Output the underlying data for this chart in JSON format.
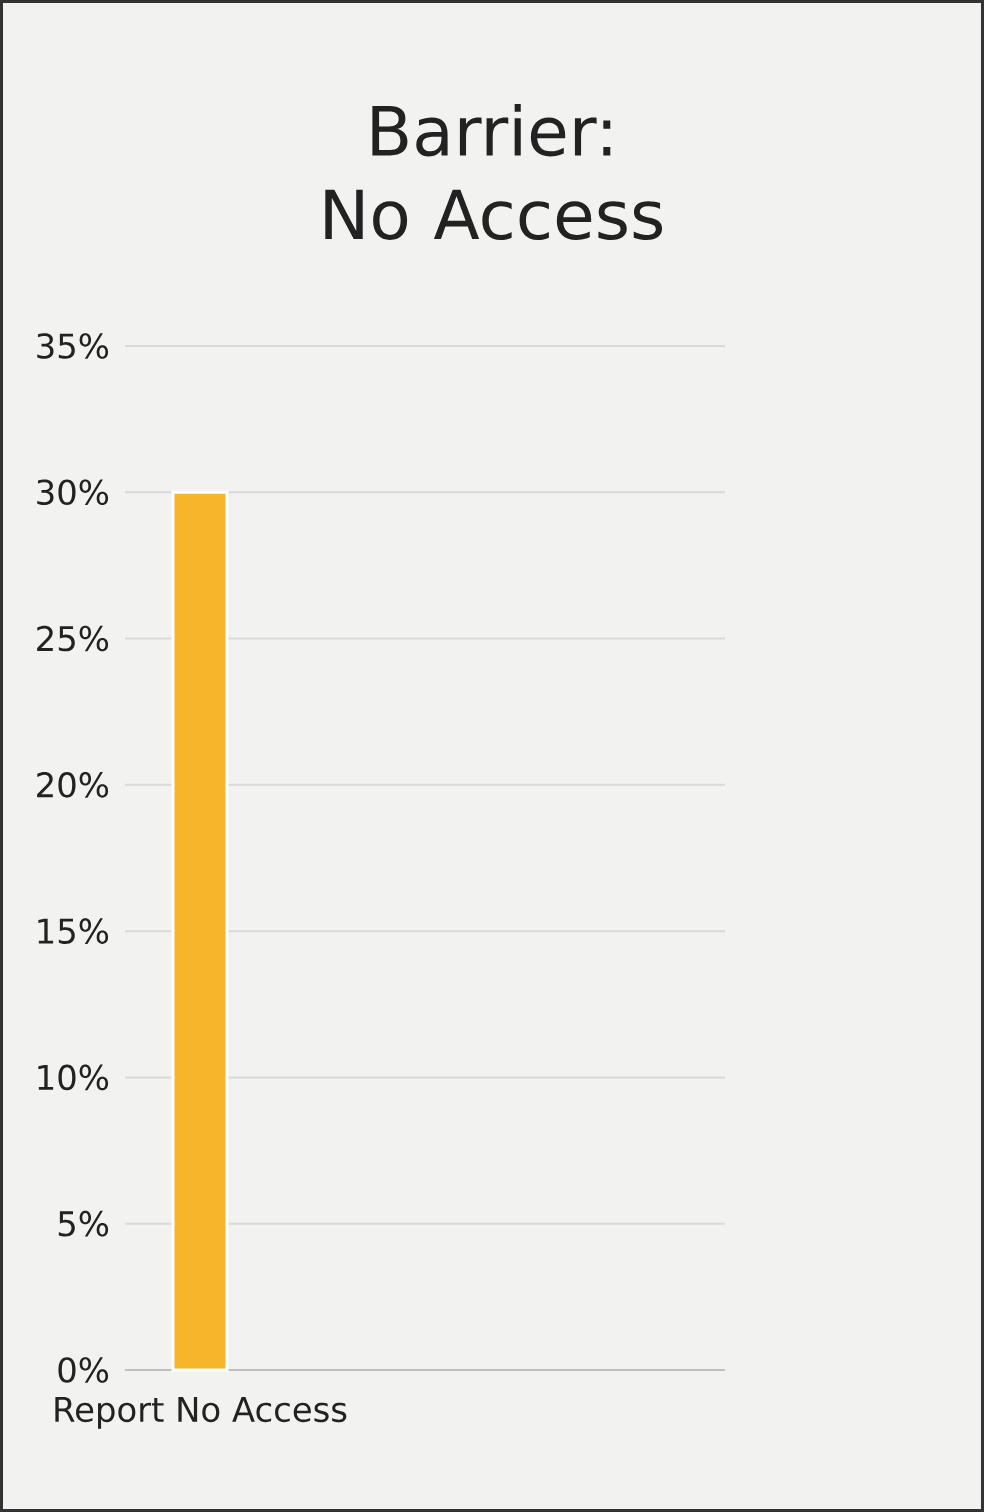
{
  "chart_data": {
    "type": "bar",
    "title": "Barrier: No Access",
    "categories": [
      "Report No Access",
      null,
      null,
      null
    ],
    "values": [
      30,
      null,
      null,
      null
    ],
    "color": "#f7b52b",
    "ylim": [
      0,
      35
    ],
    "yticks": [
      {
        "value": 0,
        "label": "0%"
      },
      {
        "value": 5,
        "label": "5%"
      },
      {
        "value": 10,
        "label": "10%"
      },
      {
        "value": 15,
        "label": "15%"
      },
      {
        "value": 20,
        "label": "20%"
      },
      {
        "value": 25,
        "label": "25%"
      },
      {
        "value": 30,
        "label": "30%"
      },
      {
        "value": 35,
        "label": "35%"
      }
    ],
    "grid": "y"
  }
}
